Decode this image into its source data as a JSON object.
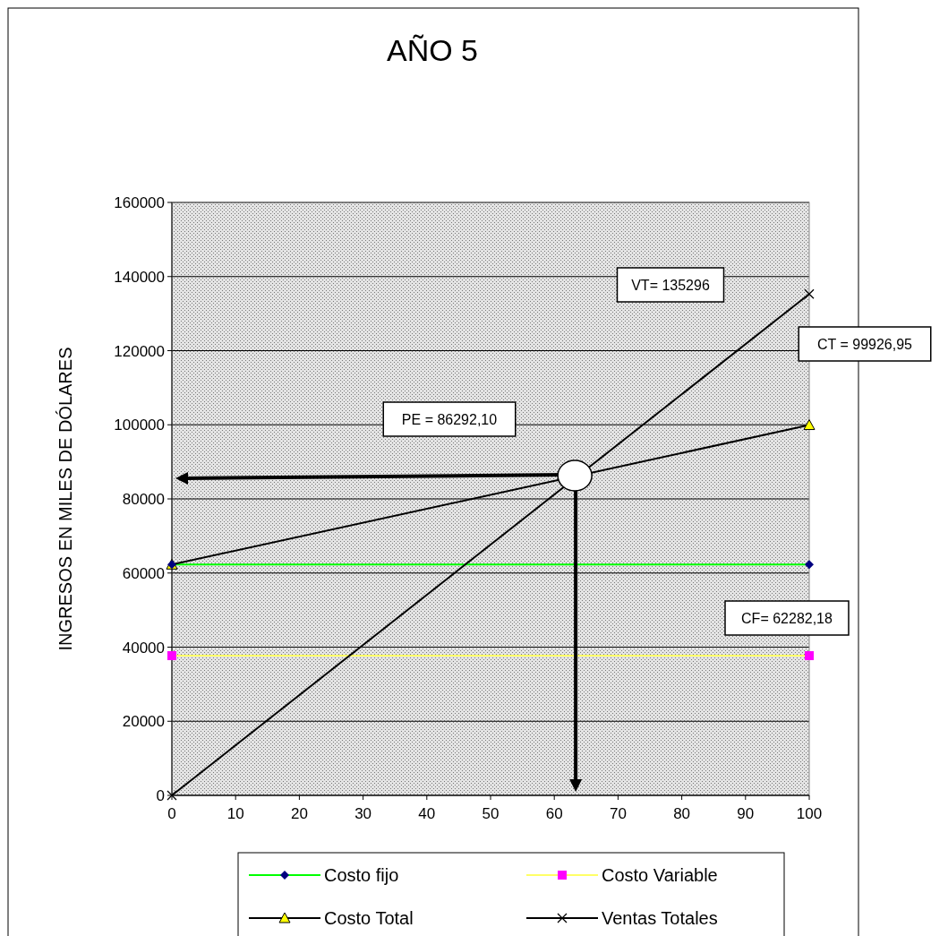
{
  "chart_data": {
    "type": "line",
    "title": "AÑO 5",
    "ylabel": "INGRESOS  EN MILES DE DÓLARES",
    "x": [
      0,
      100
    ],
    "xlim": [
      0,
      100
    ],
    "ylim": [
      0,
      160000
    ],
    "xticks": [
      0,
      10,
      20,
      30,
      40,
      50,
      60,
      70,
      80,
      90,
      100
    ],
    "yticks": [
      0,
      20000,
      40000,
      60000,
      80000,
      100000,
      120000,
      140000,
      160000
    ],
    "grid": "y",
    "legend": "bottom",
    "series": [
      {
        "name": "Costo fijo",
        "color": "#00ff00",
        "marker": "diamond",
        "colors": [
          "#000080",
          "#000080"
        ],
        "values": [
          62282.18,
          62282.18
        ]
      },
      {
        "name": "Costo Variable",
        "color": "#ffff66",
        "marker": "square",
        "colors": [
          "#ff00ff",
          "#ff00ff"
        ],
        "values": [
          37700,
          37700
        ]
      },
      {
        "name": "Costo Total",
        "color": "#000000",
        "marker": "triangle",
        "colors": [
          "#ffff00",
          "#ffff00"
        ],
        "values": [
          62282.18,
          99926.95
        ]
      },
      {
        "name": "Ventas Totales",
        "color": "#000000",
        "marker": "cross",
        "colors": [
          "#000000",
          "#000000"
        ],
        "values": [
          0,
          135296
        ]
      }
    ],
    "annotations": [
      "VT= 135296",
      "CT = 99926,95",
      "PE = 86292,10",
      "CF= 62282,18"
    ]
  }
}
